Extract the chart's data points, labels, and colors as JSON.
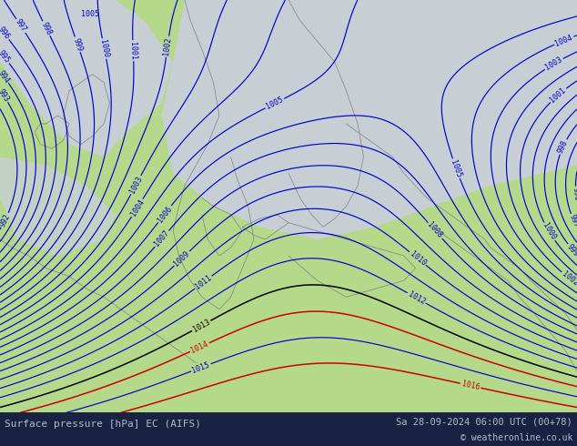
{
  "title_left": "Surface pressure [hPa] EC (AIFS)",
  "title_right": "Sa 28-09-2024 06:00 UTC (00+78)",
  "copyright": "© weatheronline.co.uk",
  "land_color": "#b5d98a",
  "sea_color": "#c8cfd4",
  "isobar_color_blue": "#0000cc",
  "isobar_color_black": "#000000",
  "isobar_color_red": "#cc0000",
  "footer_bg": "#1a2244",
  "footer_text_color": "#b0bec8",
  "figsize": [
    6.34,
    4.9
  ],
  "dpi": 100
}
